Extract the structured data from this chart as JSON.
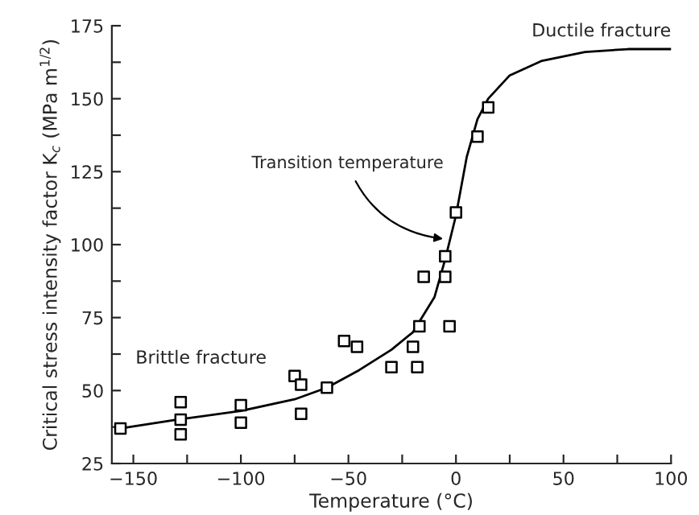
{
  "chart_data": {
    "type": "scatter",
    "xlabel": "Temperature (°C)",
    "ylabel": "Critical stress intensity factor K$_{c}$ (MPa m$^{1/2}$)",
    "xlim": [
      -160,
      100
    ],
    "ylim": [
      25,
      175
    ],
    "xticks": [
      {
        "value": -150,
        "label": "−150"
      },
      {
        "value": -125,
        "label": null
      },
      {
        "value": -100,
        "label": "−100"
      },
      {
        "value": -75,
        "label": null
      },
      {
        "value": -50,
        "label": "−50"
      },
      {
        "value": -25,
        "label": null
      },
      0,
      {
        "value": 25,
        "label": null
      },
      50,
      {
        "value": 75,
        "label": null
      },
      100
    ],
    "yticks": [
      25,
      {
        "value": 37.5,
        "label": null
      },
      50,
      {
        "value": 62.5,
        "label": null
      },
      75,
      {
        "value": 87.5,
        "label": null
      },
      100,
      {
        "value": 112.5,
        "label": null
      },
      125,
      {
        "value": 137.5,
        "label": null
      },
      150,
      {
        "value": 162.5,
        "label": null
      },
      175
    ],
    "grid": false,
    "legend": false,
    "series": [
      {
        "type": "line",
        "marker": "none",
        "color": "#000000",
        "x": [
          -156,
          -130,
          -100,
          -75,
          -60,
          -45,
          -30,
          -20,
          -10,
          -5,
          0,
          5,
          10,
          15,
          25,
          40,
          60,
          80,
          100
        ],
        "values": [
          37,
          40,
          43,
          47,
          51,
          57,
          64,
          70,
          82,
          95,
          110,
          130,
          143,
          150,
          158,
          163,
          166,
          167,
          167
        ]
      },
      {
        "marker": "square",
        "color": "#000000",
        "x": [
          -156,
          -128,
          -128,
          -128,
          -100,
          -100,
          -75,
          -72,
          -72,
          -60,
          -52,
          -46,
          -30,
          -20,
          -18,
          -17,
          -15,
          -5,
          -5,
          -3,
          0,
          10,
          15
        ],
        "values": [
          37,
          46,
          40,
          35,
          45,
          39,
          55,
          52,
          42,
          51,
          67,
          65,
          58,
          65,
          58,
          72,
          89,
          89,
          96,
          72,
          111,
          137,
          147
        ]
      }
    ],
    "annotations": [
      {
        "text": "Ductile fracture",
        "x": 100,
        "y": 167
      },
      "Brittle fracture",
      {
        "text": "Transition temperature",
        "x": -6,
        "y": 102
      }
    ]
  }
}
